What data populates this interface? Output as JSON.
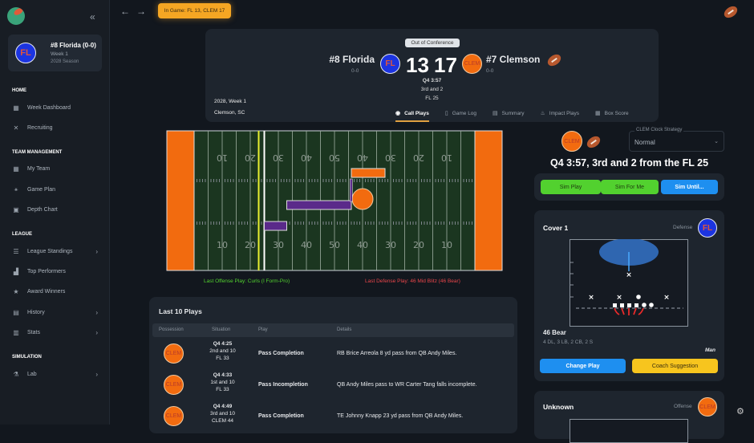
{
  "colors": {
    "accent": "#f5a623",
    "offense_text": "#52d12f",
    "defense_text": "#e8454a",
    "field": "#1b3620",
    "endzone": "#f26b0f",
    "drive": "#5a2a8a",
    "florida": "#1c34e0",
    "clemson": "#f26b0f"
  },
  "sidebar": {
    "collapse_icon": "double-chevron-left",
    "team": {
      "name": "#8 Florida (0-0)",
      "week": "Week 1",
      "season": "2028 Season",
      "logo": "FL"
    },
    "sections": [
      {
        "title": "HOME",
        "items": [
          {
            "label": "Week Dashboard",
            "icon": "grid-icon"
          },
          {
            "label": "Recruiting",
            "icon": "x-icon"
          }
        ]
      },
      {
        "title": "TEAM MANAGEMENT",
        "items": [
          {
            "label": "My Team",
            "icon": "team-icon"
          },
          {
            "label": "Game Plan",
            "icon": "playbook-icon"
          },
          {
            "label": "Depth Chart",
            "icon": "depth-icon"
          }
        ]
      },
      {
        "title": "LEAGUE",
        "items": [
          {
            "label": "League Standings",
            "icon": "layers-icon",
            "chevron": true
          },
          {
            "label": "Top Performers",
            "icon": "podium-icon"
          },
          {
            "label": "Award Winners",
            "icon": "award-icon"
          },
          {
            "label": "History",
            "icon": "history-icon",
            "chevron": true
          },
          {
            "label": "Stats",
            "icon": "stats-icon",
            "chevron": true
          }
        ]
      },
      {
        "title": "SIMULATION",
        "items": [
          {
            "label": "Lab",
            "icon": "flask-icon",
            "chevron": true
          }
        ]
      }
    ]
  },
  "topbar": {
    "in_game": "In Game: FL 13, CLEM 17"
  },
  "scoreboard": {
    "badge": "Out of Conference",
    "home": {
      "name": "#8 Florida",
      "record": "0-0",
      "logo": "FL",
      "score": "13"
    },
    "away": {
      "name": "#7 Clemson",
      "record": "0-0",
      "logo": "CLEM",
      "score": "17"
    },
    "clock": "Q4 3:57",
    "down": "3rd and 2",
    "spot": "FL 25",
    "season_week": "2028, Week 1",
    "location": "Clemson, SC",
    "tabs": [
      {
        "label": "Call Plays",
        "active": true
      },
      {
        "label": "Game Log"
      },
      {
        "label": "Summary"
      },
      {
        "label": "Impact Plays"
      },
      {
        "label": "Box Score"
      }
    ]
  },
  "field": {
    "yard_labels": [
      "10",
      "20",
      "30",
      "40",
      "50",
      "40",
      "30",
      "20",
      "10"
    ],
    "ball_on": "CLEM",
    "line_of_scrimmage_yard": 25,
    "first_down_yard": 23,
    "last_offense": "Last Offense Play: Curls (I Form-Pro)",
    "last_defense": "Last Defense Play: 46 Mid Blitz (46 Bear)"
  },
  "last_plays": {
    "title": "Last 10 Plays",
    "headers": [
      "Possession",
      "Situation",
      "Play",
      "Details"
    ],
    "rows": [
      {
        "team": "CLEM",
        "clock": "Q4 4:25",
        "down": "2nd and 10",
        "spot": "FL 33",
        "play": "Pass Completion",
        "details": "RB Brice Arreola 8 yd pass from QB Andy Miles."
      },
      {
        "team": "CLEM",
        "clock": "Q4 4:33",
        "down": "1st and 10",
        "spot": "FL 33",
        "play": "Pass Incompletion",
        "details": "QB Andy Miles pass to WR Carter Tang falls incomplete."
      },
      {
        "team": "CLEM",
        "clock": "Q4 4:49",
        "down": "3rd and 10",
        "spot": "CLEM 44",
        "play": "Pass Completion",
        "details": "TE Johnny Knapp 23 yd pass from QB Andy Miles."
      }
    ]
  },
  "control": {
    "possession_logo": "CLEM",
    "clock_strategy_label": "CLEM Clock Strategy",
    "clock_strategy_value": "Normal",
    "heading": "Q4 3:57, 3rd and 2 from the FL 25",
    "buttons": {
      "sim_play": "Sim Play",
      "sim_for_me": "Sim For Me",
      "sim_until": "Sim Until..."
    }
  },
  "defense_card": {
    "title": "Cover 1",
    "role": "Defense",
    "logo": "FL",
    "formation": "46 Bear",
    "personnel": "4 DL, 3 LB, 2 CB, 2 S",
    "coverage": "Man",
    "change_play": "Change Play",
    "coach_suggestion": "Coach Suggestion"
  },
  "offense_card": {
    "title": "Unknown",
    "role": "Offense",
    "logo": "CLEM"
  }
}
